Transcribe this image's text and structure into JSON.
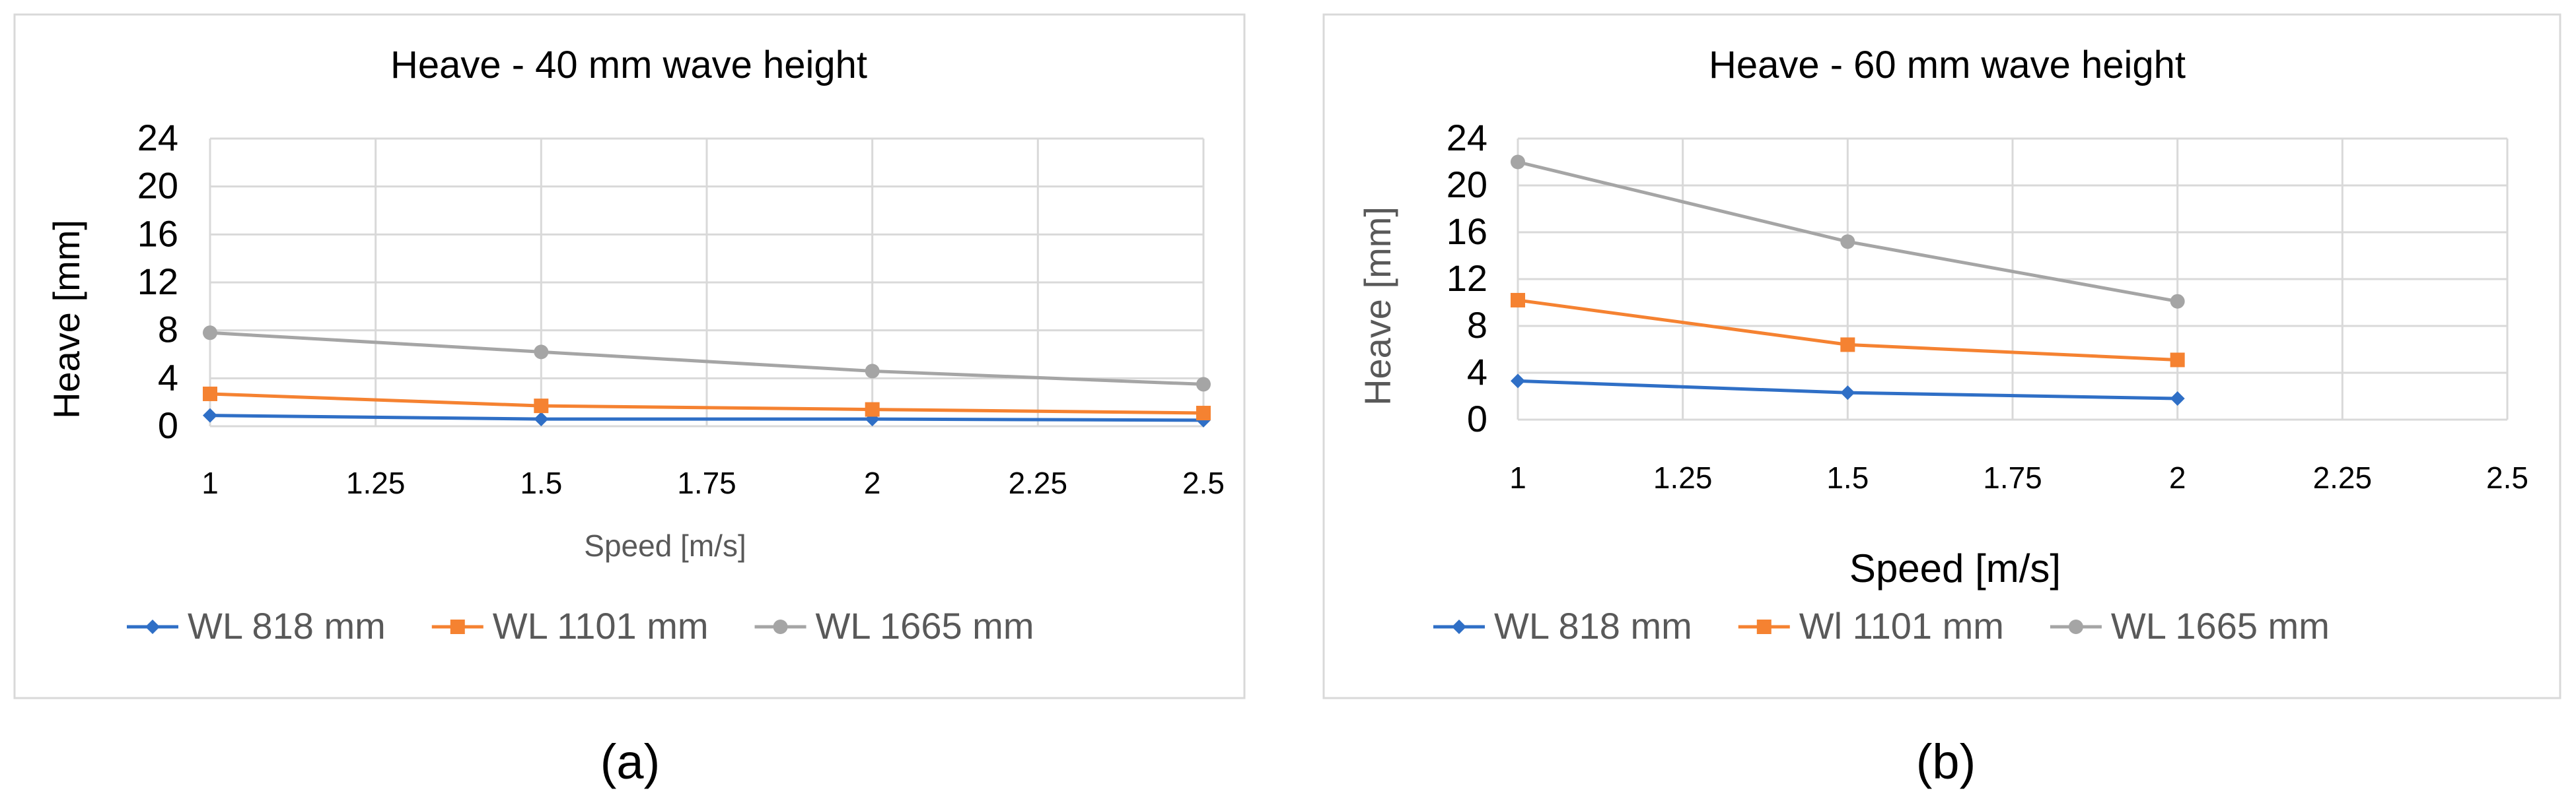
{
  "panels": [
    {
      "caption": "(a)"
    },
    {
      "caption": "(b)"
    }
  ],
  "chart_data": [
    {
      "type": "line",
      "title": "Heave - 40 mm wave height",
      "xlabel": "Speed [m/s]",
      "ylabel": "Heave [mm]",
      "xlim": [
        1,
        2.5
      ],
      "ylim": [
        0,
        24
      ],
      "xticks": [
        "1",
        "1.25",
        "1.5",
        "1.75",
        "2",
        "2.25",
        "2.5"
      ],
      "yticks": [
        "0",
        "4",
        "8",
        "12",
        "16",
        "20",
        "24"
      ],
      "grid": true,
      "legend_position": "bottom",
      "series": [
        {
          "name": "WL 818 mm",
          "color": "#2f6fc6",
          "marker": "diamond",
          "x": [
            1,
            1.5,
            2,
            2.5
          ],
          "y": [
            0.9,
            0.6,
            0.6,
            0.5
          ]
        },
        {
          "name": "WL 1101 mm",
          "color": "#f58231",
          "marker": "square",
          "x": [
            1,
            1.5,
            2,
            2.5
          ],
          "y": [
            2.7,
            1.7,
            1.4,
            1.1
          ]
        },
        {
          "name": "WL 1665 mm",
          "color": "#a5a5a5",
          "marker": "circle",
          "x": [
            1,
            1.5,
            2,
            2.5
          ],
          "y": [
            7.8,
            6.2,
            4.6,
            3.5
          ]
        }
      ]
    },
    {
      "type": "line",
      "title": "Heave - 60 mm wave height",
      "xlabel": "Speed [m/s]",
      "ylabel": "Heave [mm]",
      "xlim": [
        1,
        2.5
      ],
      "ylim": [
        0,
        24
      ],
      "xticks": [
        "1",
        "1.25",
        "1.5",
        "1.75",
        "2",
        "2.25",
        "2.5"
      ],
      "yticks": [
        "0",
        "4",
        "8",
        "12",
        "16",
        "20",
        "24"
      ],
      "grid": true,
      "legend_position": "bottom",
      "series": [
        {
          "name": "WL 818 mm",
          "color": "#2f6fc6",
          "marker": "diamond",
          "x": [
            1,
            1.5,
            2
          ],
          "y": [
            3.3,
            2.3,
            1.8
          ]
        },
        {
          "name": "Wl 1101 mm",
          "color": "#f58231",
          "marker": "square",
          "x": [
            1,
            1.5,
            2
          ],
          "y": [
            10.2,
            6.4,
            5.1
          ]
        },
        {
          "name": "WL 1665 mm",
          "color": "#a5a5a5",
          "marker": "circle",
          "x": [
            1,
            1.5,
            2
          ],
          "y": [
            22.0,
            15.2,
            10.1
          ]
        }
      ]
    }
  ]
}
